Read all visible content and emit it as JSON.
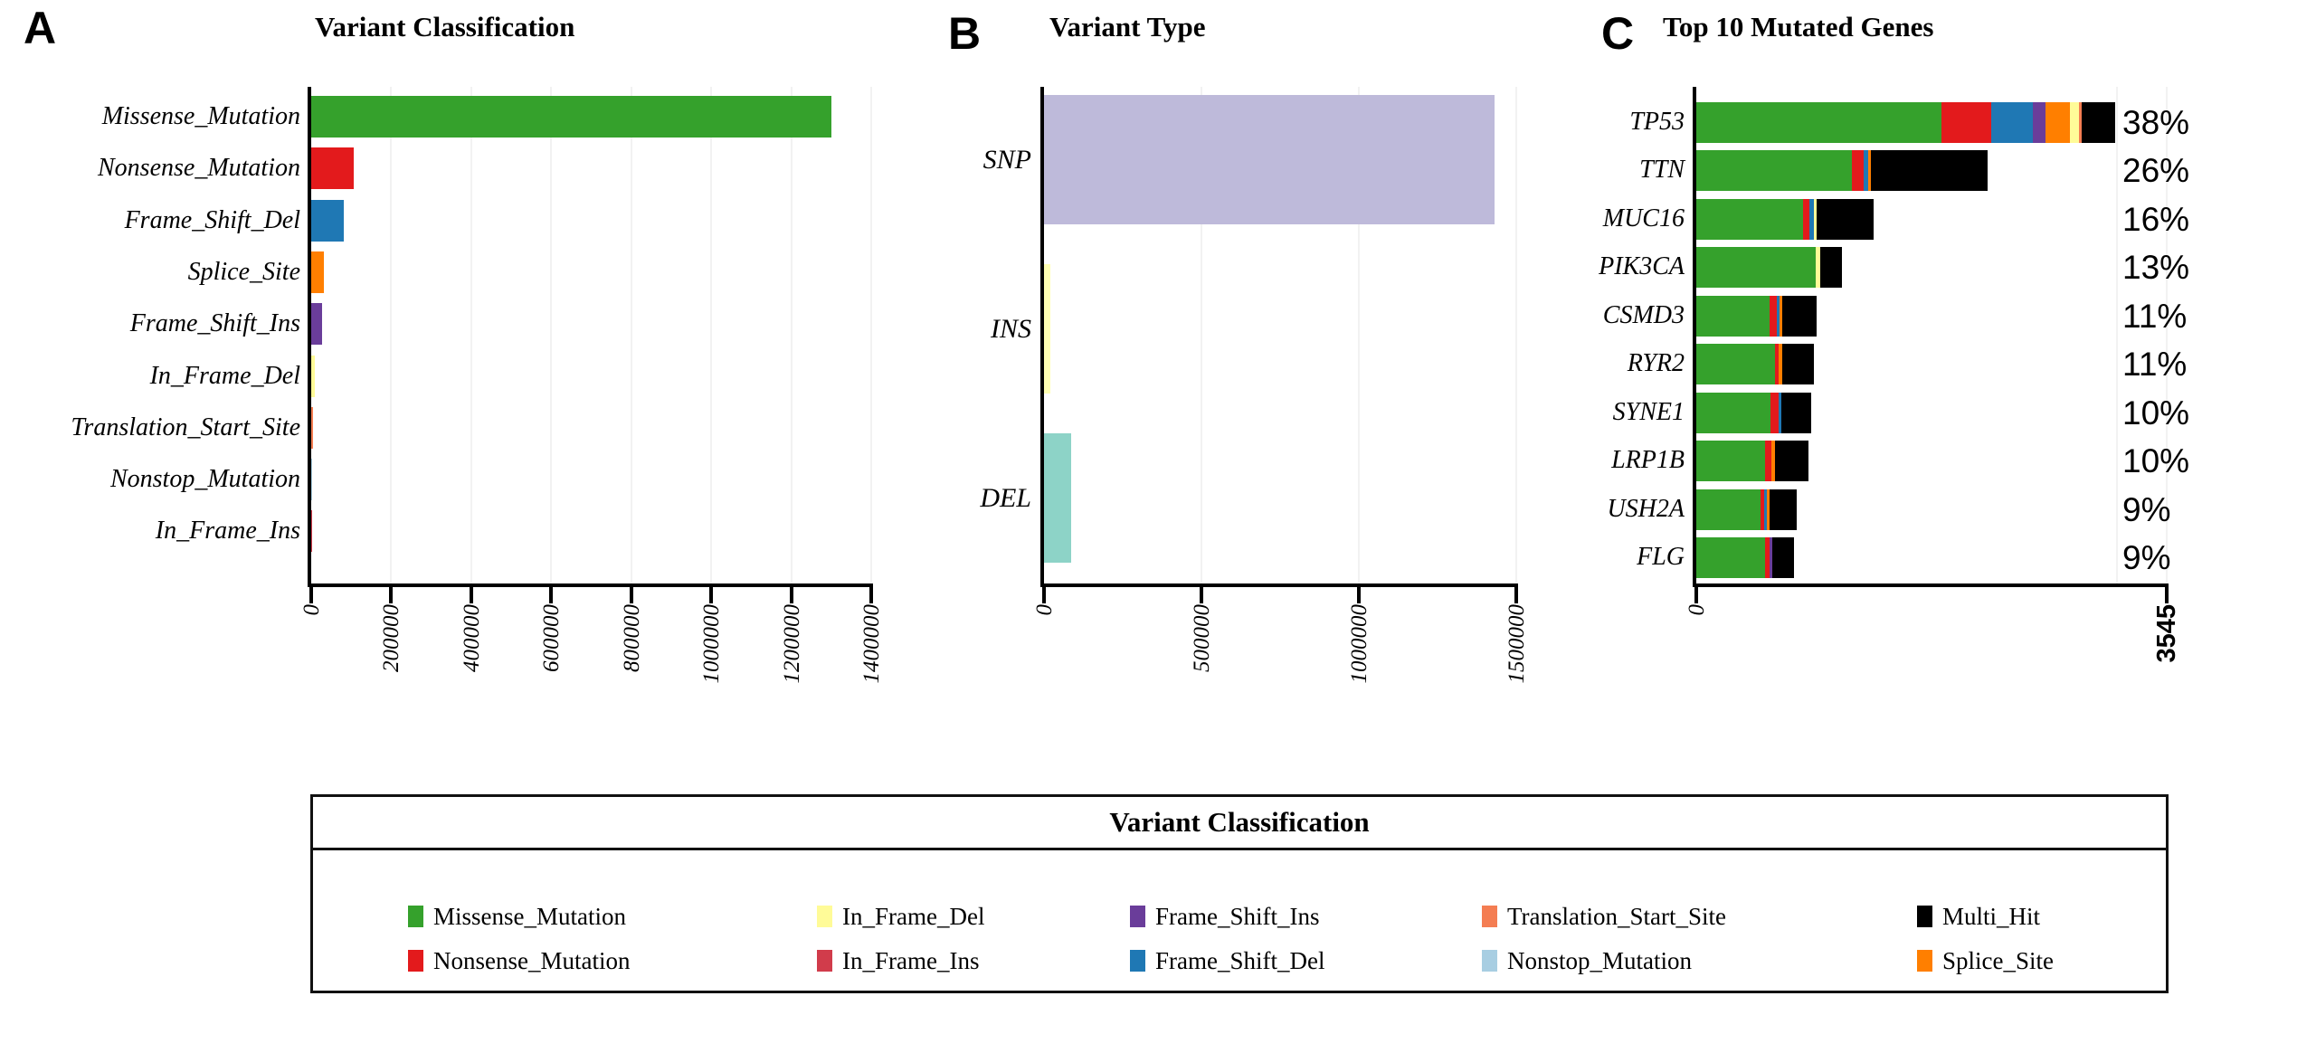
{
  "figure": {
    "panel_a_letter": "A",
    "panel_b_letter": "B",
    "panel_c_letter": "C"
  },
  "classification_colors": {
    "Missense_Mutation": "#35A12C",
    "Nonsense_Mutation": "#E31A1C",
    "Frame_Shift_Del": "#1F78B4",
    "Splice_Site": "#FF7F00",
    "Frame_Shift_Ins": "#6A3D9A",
    "In_Frame_Del": "#FFFB98",
    "In_Frame_Ins": "#D13C4B",
    "Translation_Start_Site": "#F47D52",
    "Nonstop_Mutation": "#A8CEE2",
    "Multi_Hit": "#000000"
  },
  "chart_data": [
    {
      "id": "A",
      "type": "bar",
      "orientation": "horizontal",
      "title": "Variant Classification",
      "categories": [
        "Missense_Mutation",
        "Nonsense_Mutation",
        "Frame_Shift_Del",
        "Splice_Site",
        "Frame_Shift_Ins",
        "In_Frame_Del",
        "Translation_Start_Site",
        "Nonstop_Mutation",
        "In_Frame_Ins"
      ],
      "values": [
        1300000,
        106000,
        82000,
        32000,
        27000,
        9000,
        4000,
        2500,
        1800
      ],
      "bar_color_keys": [
        "Missense_Mutation",
        "Nonsense_Mutation",
        "Frame_Shift_Del",
        "Splice_Site",
        "Frame_Shift_Ins",
        "In_Frame_Del",
        "Translation_Start_Site",
        "Nonstop_Mutation",
        "In_Frame_Ins"
      ],
      "xlim": [
        0,
        1400000
      ],
      "xtick_values": [
        0,
        200000,
        400000,
        600000,
        800000,
        1000000,
        1200000,
        1400000
      ],
      "xtick_labels": [
        "0",
        "200000",
        "400000",
        "600000",
        "800000",
        "1000000",
        "1200000",
        "1400000"
      ],
      "grid": "faint-vertical",
      "legend_position": "bottom"
    },
    {
      "id": "B",
      "type": "bar",
      "orientation": "horizontal",
      "title": "Variant Type",
      "categories": [
        "SNP",
        "INS",
        "DEL"
      ],
      "values": [
        1430000,
        20000,
        86000
      ],
      "bar_colors": [
        "#BEBADA",
        "#FFFFB3",
        "#8DD3C7"
      ],
      "xlim": [
        0,
        1500000
      ],
      "xtick_values": [
        0,
        500000,
        1000000,
        1500000
      ],
      "xtick_labels": [
        "0",
        "500000",
        "1000000",
        "1500000"
      ],
      "grid": "faint-vertical"
    },
    {
      "id": "C",
      "type": "stacked-bar",
      "orientation": "horizontal",
      "title": "Top 10 Mutated Genes",
      "xlim": [
        0,
        3545
      ],
      "xtick_values": [
        0,
        3545
      ],
      "xtick_labels": [
        "0",
        "3545"
      ],
      "grid": "faint-vertical",
      "genes": [
        {
          "name": "TP53",
          "percent": "38%",
          "segments": [
            [
              "Missense_Mutation",
              1848
            ],
            [
              "Nonsense_Mutation",
              375
            ],
            [
              "Frame_Shift_Del",
              314
            ],
            [
              "Frame_Shift_Ins",
              95
            ],
            [
              "Splice_Site",
              184
            ],
            [
              "In_Frame_Del",
              68
            ],
            [
              "Translation_Start_Site",
              20
            ],
            [
              "Multi_Hit",
              252
            ]
          ]
        },
        {
          "name": "TTN",
          "percent": "26%",
          "segments": [
            [
              "Missense_Mutation",
              1173
            ],
            [
              "Nonsense_Mutation",
              89
            ],
            [
              "Frame_Shift_Del",
              33
            ],
            [
              "Splice_Site",
              22
            ],
            [
              "Multi_Hit",
              879
            ]
          ]
        },
        {
          "name": "MUC16",
          "percent": "16%",
          "segments": [
            [
              "Missense_Mutation",
              805
            ],
            [
              "Nonsense_Mutation",
              50
            ],
            [
              "Frame_Shift_Del",
              33
            ],
            [
              "In_Frame_Del",
              18
            ],
            [
              "Multi_Hit",
              428
            ]
          ]
        },
        {
          "name": "PIK3CA",
          "percent": "13%",
          "segments": [
            [
              "Missense_Mutation",
              901
            ],
            [
              "In_Frame_Del",
              31
            ],
            [
              "Multi_Hit",
              165
            ]
          ]
        },
        {
          "name": "CSMD3",
          "percent": "11%",
          "segments": [
            [
              "Missense_Mutation",
              554
            ],
            [
              "Nonsense_Mutation",
              56
            ],
            [
              "Frame_Shift_Del",
              20
            ],
            [
              "Splice_Site",
              20
            ],
            [
              "Multi_Hit",
              258
            ]
          ]
        },
        {
          "name": "RYR2",
          "percent": "11%",
          "segments": [
            [
              "Missense_Mutation",
              591
            ],
            [
              "Nonsense_Mutation",
              30
            ],
            [
              "Splice_Site",
              28
            ],
            [
              "Multi_Hit",
              239
            ]
          ]
        },
        {
          "name": "SYNE1",
          "percent": "10%",
          "segments": [
            [
              "Missense_Mutation",
              562
            ],
            [
              "Nonsense_Mutation",
              58
            ],
            [
              "Frame_Shift_Del",
              20
            ],
            [
              "Multi_Hit",
              224
            ]
          ]
        },
        {
          "name": "LRP1B",
          "percent": "10%",
          "segments": [
            [
              "Missense_Mutation",
              520
            ],
            [
              "Nonsense_Mutation",
              43
            ],
            [
              "Splice_Site",
              33
            ],
            [
              "Multi_Hit",
              246
            ]
          ]
        },
        {
          "name": "USH2A",
          "percent": "9%",
          "segments": [
            [
              "Missense_Mutation",
              487
            ],
            [
              "Nonsense_Mutation",
              25
            ],
            [
              "Frame_Shift_Del",
              20
            ],
            [
              "Splice_Site",
              20
            ],
            [
              "Multi_Hit",
              205
            ]
          ]
        },
        {
          "name": "FLG",
          "percent": "9%",
          "segments": [
            [
              "Missense_Mutation",
              520
            ],
            [
              "Nonsense_Mutation",
              33
            ],
            [
              "Frame_Shift_Ins",
              18
            ],
            [
              "Multi_Hit",
              165
            ]
          ]
        }
      ]
    }
  ],
  "legend": {
    "title": "Variant Classification",
    "columns": [
      [
        {
          "label": "Missense_Mutation",
          "color": "#35A12C"
        },
        {
          "label": "Nonsense_Mutation",
          "color": "#E31A1C"
        }
      ],
      [
        {
          "label": "In_Frame_Del",
          "color": "#FFFB98"
        },
        {
          "label": "In_Frame_Ins",
          "color": "#D13C4B"
        }
      ],
      [
        {
          "label": "Frame_Shift_Ins",
          "color": "#6A3D9A"
        },
        {
          "label": "Frame_Shift_Del",
          "color": "#1F78B4"
        }
      ],
      [
        {
          "label": "Translation_Start_Site",
          "color": "#F47D52"
        },
        {
          "label": "Nonstop_Mutation",
          "color": "#A8CEE2"
        }
      ],
      [
        {
          "label": "Multi_Hit",
          "color": "#000000"
        },
        {
          "label": "Splice_Site",
          "color": "#FF7F00"
        }
      ]
    ]
  }
}
